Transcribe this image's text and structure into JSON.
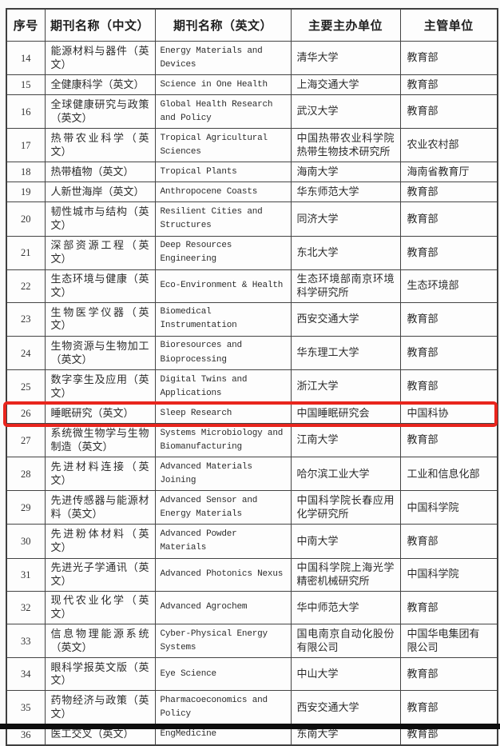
{
  "highlight_color": "#e8251d",
  "bottom_bar_color": "#0e0e0e",
  "table": {
    "headers": [
      "序号",
      "期刊名称（中文）",
      "期刊名称（英文）",
      "主要主办单位",
      "主管单位"
    ],
    "rows": [
      {
        "no": "14",
        "name_cn": "能源材料与器件（英文）",
        "name_en": "Energy Materials and\nDevices",
        "organizer": "清华大学",
        "supervisor": "教育部",
        "highlighted": false
      },
      {
        "no": "15",
        "name_cn": "全健康科学（英文）",
        "name_en": "Science in One Health",
        "organizer": "上海交通大学",
        "supervisor": "教育部",
        "highlighted": false
      },
      {
        "no": "16",
        "name_cn": "全球健康研究与政策（英文）",
        "name_en": "Global Health Research\nand Policy",
        "organizer": "武汉大学",
        "supervisor": "教育部",
        "highlighted": false
      },
      {
        "no": "17",
        "name_cn": "热带农业科学（英文）",
        "name_en": "Tropical Agricultural\nSciences",
        "organizer": "中国热带农业科学院热带生物技术研究所",
        "supervisor": "农业农村部",
        "highlighted": false
      },
      {
        "no": "18",
        "name_cn": "热带植物（英文）",
        "name_en": "Tropical Plants",
        "organizer": "海南大学",
        "supervisor": "海南省教育厅",
        "highlighted": false
      },
      {
        "no": "19",
        "name_cn": "人新世海岸（英文）",
        "name_en": "Anthropocene Coasts",
        "organizer": "华东师范大学",
        "supervisor": "教育部",
        "highlighted": false
      },
      {
        "no": "20",
        "name_cn": "韧性城市与结构（英文）",
        "name_en": "Resilient Cities and\nStructures",
        "organizer": "同济大学",
        "supervisor": "教育部",
        "highlighted": false
      },
      {
        "no": "21",
        "name_cn": "深部资源工程（英文）",
        "name_en": "Deep Resources\nEngineering",
        "organizer": "东北大学",
        "supervisor": "教育部",
        "highlighted": false
      },
      {
        "no": "22",
        "name_cn": "生态环境与健康（英文）",
        "name_en": "Eco-Environment & Health",
        "organizer": "生态环境部南京环境科学研究所",
        "supervisor": "生态环境部",
        "highlighted": false
      },
      {
        "no": "23",
        "name_cn": "生物医学仪器（英文）",
        "name_en": "Biomedical\nInstrumentation",
        "organizer": "西安交通大学",
        "supervisor": "教育部",
        "highlighted": false
      },
      {
        "no": "24",
        "name_cn": "生物资源与生物加工（英文）",
        "name_en": "Bioresources and\nBioprocessing",
        "organizer": "华东理工大学",
        "supervisor": "教育部",
        "highlighted": false
      },
      {
        "no": "25",
        "name_cn": "数字孪生及应用（英文）",
        "name_en": "Digital Twins and\nApplications",
        "organizer": "浙江大学",
        "supervisor": "教育部",
        "highlighted": false
      },
      {
        "no": "26",
        "name_cn": "睡眠研究（英文）",
        "name_en": "Sleep Research",
        "organizer": "中国睡眠研究会",
        "supervisor": "中国科协",
        "highlighted": true
      },
      {
        "no": "27",
        "name_cn": "系统微生物学与生物制造（英文）",
        "name_en": "Systems Microbiology and\nBiomanufacturing",
        "organizer": "江南大学",
        "supervisor": "教育部",
        "highlighted": false
      },
      {
        "no": "28",
        "name_cn": "先进材料连接（英文）",
        "name_en": "Advanced Materials\nJoining",
        "organizer": "哈尔滨工业大学",
        "supervisor": "工业和信息化部",
        "highlighted": false
      },
      {
        "no": "29",
        "name_cn": "先进传感器与能源材料（英文）",
        "name_en": "Advanced Sensor and\nEnergy Materials",
        "organizer": "中国科学院长春应用化学研究所",
        "supervisor": "中国科学院",
        "highlighted": false
      },
      {
        "no": "30",
        "name_cn": "先进粉体材料（英文）",
        "name_en": "Advanced Powder\nMaterials",
        "organizer": "中南大学",
        "supervisor": "教育部",
        "highlighted": false
      },
      {
        "no": "31",
        "name_cn": "先进光子学通讯（英文）",
        "name_en": "Advanced Photonics Nexus",
        "organizer": "中国科学院上海光学精密机械研究所",
        "supervisor": "中国科学院",
        "highlighted": false
      },
      {
        "no": "32",
        "name_cn": "现代农业化学（英文）",
        "name_en": "Advanced Agrochem",
        "organizer": "华中师范大学",
        "supervisor": "教育部",
        "highlighted": false
      },
      {
        "no": "33",
        "name_cn": "信息物理能源系统（英文）",
        "name_en": "Cyber-Physical Energy\nSystems",
        "organizer": "国电南京自动化股份有限公司",
        "supervisor": "中国华电集团有限公司",
        "highlighted": false
      },
      {
        "no": "34",
        "name_cn": "眼科学报英文版（英文）",
        "name_en": "Eye Science",
        "organizer": "中山大学",
        "supervisor": "教育部",
        "highlighted": false
      },
      {
        "no": "35",
        "name_cn": "药物经济与政策（英文）",
        "name_en": "Pharmacoeconomics and\nPolicy",
        "organizer": "西安交通大学",
        "supervisor": "教育部",
        "highlighted": false
      },
      {
        "no": "36",
        "name_cn": "医工交叉（英文）",
        "name_en": "EngMedicine",
        "organizer": "东南大学",
        "supervisor": "教育部",
        "highlighted": false
      }
    ]
  }
}
